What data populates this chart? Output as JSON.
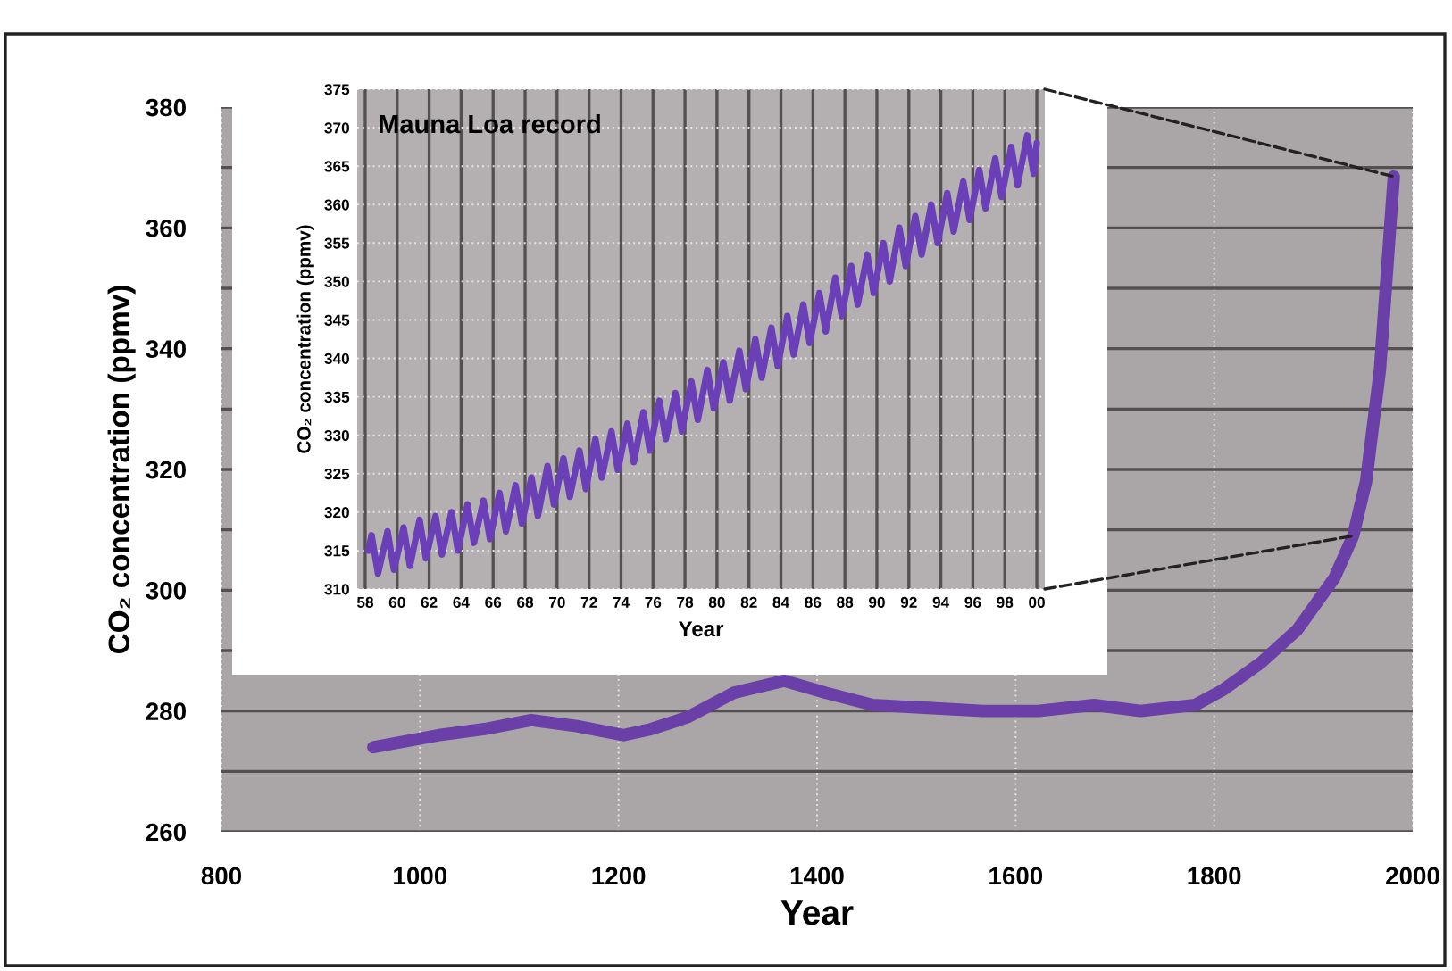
{
  "chart_data": [
    {
      "type": "line",
      "xlabel": "Year",
      "ylabel": "CO₂ concentration (ppmv)",
      "x": [
        953,
        1019,
        1065,
        1112,
        1158,
        1205,
        1233,
        1270,
        1316,
        1367,
        1409,
        1456,
        1512,
        1567,
        1623,
        1679,
        1726,
        1781,
        1809,
        1847,
        1884,
        1921,
        1940,
        1953,
        1967,
        1977,
        1981
      ],
      "series": [
        {
          "color": "#6a3fa8",
          "values": [
            274,
            276,
            277,
            278.5,
            277.5,
            276,
            277,
            279,
            283,
            285,
            283,
            281,
            280.5,
            280,
            280,
            281,
            280,
            281,
            283.5,
            288,
            293.5,
            302,
            309,
            318,
            336.5,
            359.5,
            368.5
          ]
        }
      ],
      "xlim": [
        800,
        2000
      ],
      "xticks": [
        800,
        1000,
        1200,
        1400,
        1600,
        1800,
        2000
      ],
      "ylim": [
        260,
        380
      ],
      "yticks": [
        260,
        {
          "value": 270,
          "label": null
        },
        280,
        {
          "value": 290,
          "label": null
        },
        300,
        {
          "value": 310,
          "label": null
        },
        320,
        {
          "value": 330,
          "label": null
        },
        340,
        {
          "value": 350,
          "label": null
        },
        360,
        {
          "value": 370,
          "label": null
        },
        380
      ],
      "grid": true,
      "line_style": "solid",
      "marker": "none"
    },
    {
      "type": "line",
      "title": "Mauna Loa record",
      "xlabel": "Year",
      "ylabel": "CO₂ concentration (ppmv)",
      "x": [
        1958.2,
        1958.4,
        1958.8,
        1959.4,
        1959.8,
        1960.4,
        1960.8,
        1961.4,
        1961.8,
        1962.4,
        1962.8,
        1963.4,
        1963.8,
        1964.4,
        1964.8,
        1965.4,
        1965.8,
        1966.4,
        1966.8,
        1967.4,
        1967.8,
        1968.4,
        1968.8,
        1969.4,
        1969.8,
        1970.4,
        1970.8,
        1971.4,
        1971.8,
        1972.4,
        1972.8,
        1973.4,
        1973.8,
        1974.4,
        1974.8,
        1975.4,
        1975.8,
        1976.4,
        1976.8,
        1977.4,
        1977.8,
        1978.4,
        1978.8,
        1979.4,
        1979.8,
        1980.4,
        1980.8,
        1981.4,
        1981.8,
        1982.4,
        1982.8,
        1983.4,
        1983.8,
        1984.4,
        1984.8,
        1985.4,
        1985.8,
        1986.4,
        1986.8,
        1987.4,
        1987.8,
        1988.4,
        1988.8,
        1989.4,
        1989.8,
        1990.4,
        1990.8,
        1991.4,
        1991.8,
        1992.4,
        1992.8,
        1993.4,
        1993.8,
        1994.4,
        1994.8,
        1995.4,
        1995.8,
        1996.4,
        1996.8,
        1997.4,
        1997.8,
        1998.4,
        1998.8,
        1999.4,
        1999.8,
        2000
      ],
      "series": [
        {
          "color": "#6a3fb8",
          "values": [
            315,
            317,
            312,
            317.5,
            312.5,
            318,
            313,
            319,
            314,
            319.5,
            314.5,
            320,
            315,
            321,
            316,
            321.5,
            316.5,
            322.5,
            317.5,
            323.5,
            318.5,
            324.5,
            319.5,
            326,
            321,
            327,
            322,
            328,
            323,
            329.5,
            324.5,
            330.5,
            325.5,
            331.5,
            326.5,
            333,
            328,
            334.5,
            329.5,
            335.5,
            330.5,
            337,
            332,
            338.5,
            333.5,
            339.5,
            334.5,
            341,
            336,
            342.5,
            337.5,
            344,
            339,
            345.5,
            340.5,
            347,
            342,
            348.5,
            343.5,
            350.5,
            345.5,
            352,
            347,
            353.5,
            348.5,
            355,
            350,
            357,
            352,
            358.5,
            353.5,
            360,
            355,
            361.5,
            356.5,
            363,
            358,
            364.5,
            359.5,
            366,
            361,
            367.5,
            362.5,
            369,
            364,
            368
          ]
        }
      ],
      "xlim": [
        1957.5,
        2000.5
      ],
      "xticks": [
        {
          "value": 1958,
          "label": "58"
        },
        {
          "value": 1960,
          "label": "60"
        },
        {
          "value": 1962,
          "label": "62"
        },
        {
          "value": 1964,
          "label": "64"
        },
        {
          "value": 1966,
          "label": "66"
        },
        {
          "value": 1968,
          "label": "68"
        },
        {
          "value": 1970,
          "label": "70"
        },
        {
          "value": 1972,
          "label": "72"
        },
        {
          "value": 1974,
          "label": "74"
        },
        {
          "value": 1976,
          "label": "76"
        },
        {
          "value": 1978,
          "label": "78"
        },
        {
          "value": 1980,
          "label": "80"
        },
        {
          "value": 1982,
          "label": "82"
        },
        {
          "value": 1984,
          "label": "84"
        },
        {
          "value": 1986,
          "label": "86"
        },
        {
          "value": 1988,
          "label": "88"
        },
        {
          "value": 1990,
          "label": "90"
        },
        {
          "value": 1992,
          "label": "92"
        },
        {
          "value": 1994,
          "label": "94"
        },
        {
          "value": 1996,
          "label": "96"
        },
        {
          "value": 1998,
          "label": "98"
        },
        {
          "value": 2000,
          "label": "00"
        }
      ],
      "ylim": [
        310,
        375
      ],
      "yticks": [
        310,
        315,
        320,
        325,
        330,
        335,
        340,
        345,
        350,
        355,
        360,
        365,
        370,
        375
      ],
      "grid": true,
      "line_style": "solid",
      "marker": "none"
    }
  ]
}
